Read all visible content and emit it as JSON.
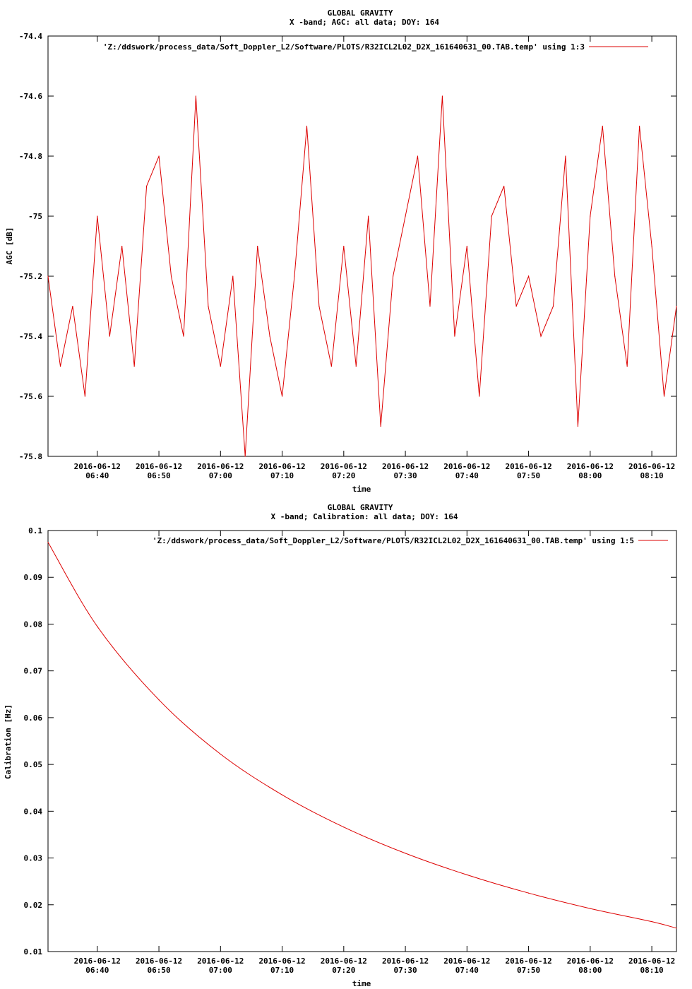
{
  "charts": [
    {
      "title_line1": "GLOBAL GRAVITY",
      "title_line2": "X -band; AGC: all data; DOY: 164",
      "ylabel": "AGC [dB]",
      "xlabel": "time",
      "legend": "'Z:/ddswork/process_data/Soft_Doppler_L2/Software/PLOTS/R32ICL2L02_D2X_161640631_00.TAB.temp' using 1:3",
      "ytick_labels": [
        "-74.4",
        "-74.6",
        "-74.8",
        "-75",
        "-75.2",
        "-75.4",
        "-75.6",
        "-75.8"
      ],
      "xtick_date": "2016-06-12",
      "xtick_times": [
        "06:40",
        "06:50",
        "07:00",
        "07:10",
        "07:20",
        "07:30",
        "07:40",
        "07:50",
        "08:00",
        "08:10"
      ]
    },
    {
      "title_line1": "GLOBAL GRAVITY",
      "title_line2": "X -band; Calibration: all data; DOY: 164",
      "ylabel": "Calibration [Hz]",
      "xlabel": "time",
      "legend": "'Z:/ddswork/process_data/Soft_Doppler_L2/Software/PLOTS/R32ICL2L02_D2X_161640631_00.TAB.temp' using 1:5",
      "ytick_labels": [
        "0.1",
        "0.09",
        "0.08",
        "0.07",
        "0.06",
        "0.05",
        "0.04",
        "0.03",
        "0.02",
        "0.01"
      ],
      "xtick_date": "2016-06-12",
      "xtick_times": [
        "06:40",
        "06:50",
        "07:00",
        "07:10",
        "07:20",
        "07:30",
        "07:40",
        "07:50",
        "08:00",
        "08:10"
      ]
    }
  ],
  "chart_data": [
    {
      "type": "line",
      "title": "GLOBAL GRAVITY X -band; AGC: all data; DOY: 164",
      "xlabel": "time",
      "ylabel": "AGC [dB]",
      "x_unit": "time of day (2016-06-12)",
      "xlim": [
        "06:32",
        "08:14"
      ],
      "ylim": [
        -75.8,
        -74.4
      ],
      "yticks": [
        -74.4,
        -74.6,
        -74.8,
        -75.0,
        -75.2,
        -75.4,
        -75.6,
        -75.8
      ],
      "xticks": [
        "06:40",
        "06:50",
        "07:00",
        "07:10",
        "07:20",
        "07:30",
        "07:40",
        "07:50",
        "08:00",
        "08:10"
      ],
      "grid": false,
      "legend_position": "top-right",
      "series": [
        {
          "color": "#dd0000",
          "x": [
            "06:32",
            "06:34",
            "06:36",
            "06:38",
            "06:40",
            "06:42",
            "06:44",
            "06:46",
            "06:48",
            "06:50",
            "06:52",
            "06:54",
            "06:56",
            "06:58",
            "07:00",
            "07:02",
            "07:04",
            "07:06",
            "07:08",
            "07:10",
            "07:12",
            "07:14",
            "07:16",
            "07:18",
            "07:20",
            "07:22",
            "07:24",
            "07:26",
            "07:28",
            "07:30",
            "07:32",
            "07:34",
            "07:36",
            "07:38",
            "07:40",
            "07:42",
            "07:44",
            "07:46",
            "07:48",
            "07:50",
            "07:52",
            "07:54",
            "07:56",
            "07:58",
            "08:00",
            "08:02",
            "08:04",
            "08:06",
            "08:08",
            "08:10",
            "08:12",
            "08:14"
          ],
          "y": [
            -75.2,
            -75.5,
            -75.3,
            -75.6,
            -75.0,
            -75.4,
            -75.1,
            -75.5,
            -74.9,
            -74.8,
            -75.2,
            -75.4,
            -74.6,
            -75.3,
            -75.5,
            -75.2,
            -75.8,
            -75.1,
            -75.4,
            -75.6,
            -75.2,
            -74.7,
            -75.3,
            -75.5,
            -75.1,
            -75.5,
            -75.0,
            -75.7,
            -75.2,
            -75.0,
            -74.8,
            -75.3,
            -74.6,
            -75.4,
            -75.1,
            -75.6,
            -75.0,
            -74.9,
            -75.3,
            -75.2,
            -75.4,
            -75.3,
            -74.8,
            -75.7,
            -75.0,
            -74.7,
            -75.2,
            -75.5,
            -74.7,
            -75.1,
            -75.6,
            -75.3
          ]
        }
      ]
    },
    {
      "type": "line",
      "title": "GLOBAL GRAVITY X -band; Calibration: all data; DOY: 164",
      "xlabel": "time",
      "ylabel": "Calibration [Hz]",
      "x_unit": "time of day (2016-06-12)",
      "xlim": [
        "06:32",
        "08:14"
      ],
      "ylim": [
        0.01,
        0.1
      ],
      "yticks": [
        0.1,
        0.09,
        0.08,
        0.07,
        0.06,
        0.05,
        0.04,
        0.03,
        0.02,
        0.01
      ],
      "xticks": [
        "06:40",
        "06:50",
        "07:00",
        "07:10",
        "07:20",
        "07:30",
        "07:40",
        "07:50",
        "08:00",
        "08:10"
      ],
      "grid": false,
      "legend_position": "top-right",
      "series": [
        {
          "color": "#dd0000",
          "x": [
            "06:32",
            "06:40",
            "06:50",
            "07:00",
            "07:10",
            "07:20",
            "07:30",
            "07:40",
            "07:50",
            "08:00",
            "08:10",
            "08:14"
          ],
          "y": [
            0.0975,
            0.0795,
            0.0638,
            0.0522,
            0.0435,
            0.0366,
            0.031,
            0.0264,
            0.0225,
            0.0192,
            0.0164,
            0.015
          ]
        }
      ]
    }
  ]
}
